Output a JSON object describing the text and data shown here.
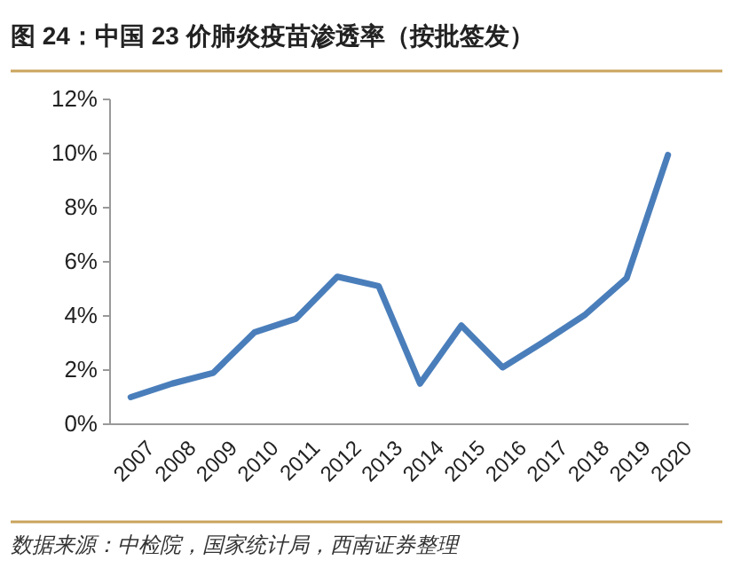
{
  "chart_data": {
    "type": "line",
    "title": "图 24：中国 23 价肺炎疫苗渗透率（按批签发）",
    "categories": [
      "2007",
      "2008",
      "2009",
      "2010",
      "2011",
      "2012",
      "2013",
      "2014",
      "2015",
      "2016",
      "2017",
      "2018",
      "2019",
      "2020"
    ],
    "series": [
      {
        "color": "#4a7ebb",
        "values": [
          1.0,
          1.5,
          1.9,
          3.4,
          3.9,
          5.45,
          5.1,
          1.5,
          3.65,
          2.1,
          3.05,
          4.05,
          5.4,
          9.95
        ]
      }
    ],
    "ylim": [
      0,
      12
    ],
    "yticks": [
      {
        "value": 0,
        "label": "0%"
      },
      {
        "value": 2,
        "label": "2%"
      },
      {
        "value": 4,
        "label": "4%"
      },
      {
        "value": 6,
        "label": "6%"
      },
      {
        "value": 8,
        "label": "8%"
      },
      {
        "value": 10,
        "label": "10%"
      },
      {
        "value": 12,
        "label": "12%"
      }
    ],
    "marker": "none",
    "line_style": "solid",
    "annotations": [
      "数据来源：中检院，国家统计局，西南证券整理"
    ]
  }
}
